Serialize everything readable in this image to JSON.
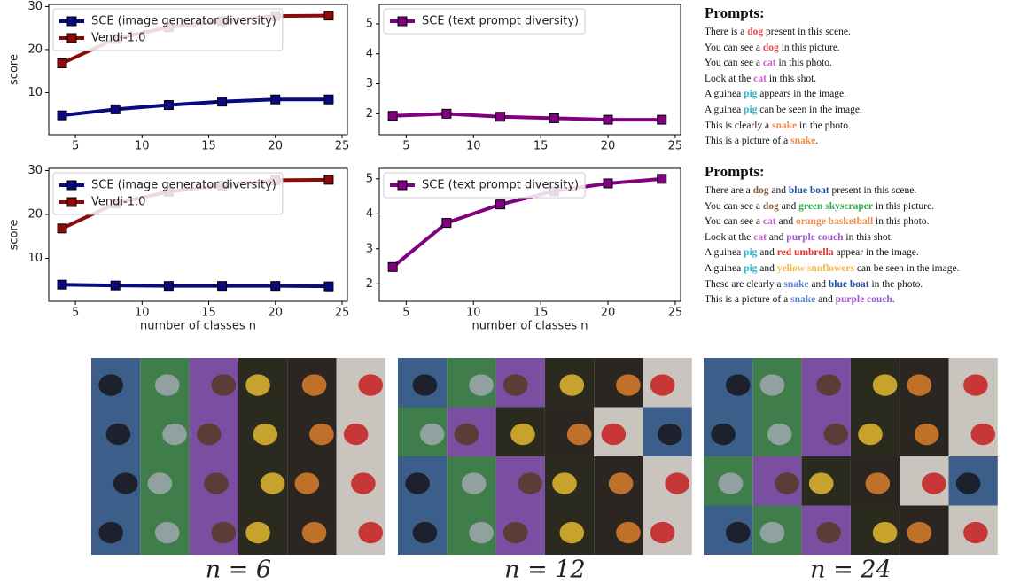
{
  "chart_data": [
    {
      "type": "line",
      "x": [
        4,
        8,
        12,
        16,
        20,
        24
      ],
      "xlim": [
        3,
        25.4
      ],
      "xticks": [
        5,
        10,
        15,
        20,
        25
      ],
      "ylim": [
        0.2,
        30.5
      ],
      "yticks": [
        10,
        20,
        30
      ],
      "ylabel": "score",
      "legend": "upper left",
      "marker": "square",
      "series": [
        {
          "name": "SCE (image generator diversity)",
          "color": "#0a0a80",
          "values": [
            4.7,
            6.1,
            7.1,
            7.9,
            8.4,
            8.4
          ]
        },
        {
          "name": "Vendi-1.0",
          "color": "#8b0a0a",
          "values": [
            16.8,
            22.5,
            25.2,
            26.6,
            27.8,
            27.9
          ]
        }
      ]
    },
    {
      "type": "line",
      "x": [
        4,
        8,
        12,
        16,
        20,
        24
      ],
      "xlim": [
        3,
        25.4
      ],
      "xticks": [
        5,
        10,
        15,
        20,
        25
      ],
      "ylim": [
        1.3,
        5.65
      ],
      "yticks": [
        2,
        3,
        4,
        5
      ],
      "legend": "upper left",
      "marker": "square",
      "series": [
        {
          "name": "SCE (text prompt diversity)",
          "color": "#800080",
          "values": [
            1.93,
            2.0,
            1.9,
            1.85,
            1.8,
            1.8
          ]
        }
      ]
    },
    {
      "type": "line",
      "x": [
        4,
        8,
        12,
        16,
        20,
        24
      ],
      "xlim": [
        3,
        25.4
      ],
      "xticks": [
        5,
        10,
        15,
        20,
        25
      ],
      "ylim": [
        0.2,
        30.5
      ],
      "yticks": [
        10,
        20,
        30
      ],
      "ylabel": "score",
      "xlabel": "number of classes n",
      "legend": "upper left",
      "marker": "square",
      "series": [
        {
          "name": "SCE (image generator diversity)",
          "color": "#0a0a80",
          "values": [
            4.0,
            3.8,
            3.7,
            3.7,
            3.7,
            3.6
          ]
        },
        {
          "name": "Vendi-1.0",
          "color": "#8b0a0a",
          "values": [
            16.8,
            22.5,
            25.2,
            26.6,
            27.8,
            27.9
          ]
        }
      ]
    },
    {
      "type": "line",
      "x": [
        4,
        8,
        12,
        16,
        20,
        24
      ],
      "xlim": [
        3,
        25.4
      ],
      "xticks": [
        5,
        10,
        15,
        20,
        25
      ],
      "ylim": [
        1.5,
        5.3
      ],
      "yticks": [
        2,
        3,
        4,
        5
      ],
      "xlabel": "number of classes n",
      "legend": "upper left",
      "marker": "square",
      "series": [
        {
          "name": "SCE (text prompt diversity)",
          "color": "#800080",
          "values": [
            2.48,
            3.74,
            4.27,
            4.65,
            4.87,
            5.0
          ]
        }
      ]
    }
  ],
  "prompts": [
    {
      "title": "Prompts:",
      "lines": [
        [
          "There is a ",
          {
            "text": "dog",
            "color": "#e5484d"
          },
          " present in this scene."
        ],
        [
          "You can see a ",
          {
            "text": "dog",
            "color": "#e5484d"
          },
          " in this picture."
        ],
        [
          "You can see a ",
          {
            "text": "cat",
            "color": "#cc5fd0"
          },
          " in this photo."
        ],
        [
          "Look at the ",
          {
            "text": "cat",
            "color": "#cc5fd0"
          },
          " in this shot."
        ],
        [
          "A guinea ",
          {
            "text": "pig",
            "color": "#2bb6cc"
          },
          " appears in the image."
        ],
        [
          "A guinea ",
          {
            "text": "pig",
            "color": "#2bb6cc"
          },
          " can be seen in the image."
        ],
        [
          "This is clearly a ",
          {
            "text": "snake",
            "color": "#f08a4b"
          },
          " in the photo."
        ],
        [
          "This is a picture of a ",
          {
            "text": "snake",
            "color": "#f08a4b"
          },
          "."
        ]
      ]
    },
    {
      "title": "Prompts:",
      "lines": [
        [
          "There are a ",
          {
            "text": "dog",
            "color": "#8b5a3c"
          },
          " and ",
          {
            "text": "blue boat",
            "color": "#1f4fa0"
          },
          " present in this scene."
        ],
        [
          "You can see a ",
          {
            "text": "dog",
            "color": "#8b5a3c"
          },
          " and ",
          {
            "text": "green skyscraper",
            "color": "#2fa84f"
          },
          " in this picture."
        ],
        [
          "You can see a ",
          {
            "text": "cat",
            "color": "#cc5fd0"
          },
          " and ",
          {
            "text": "orange basketball",
            "color": "#f08a4b"
          },
          " in this photo."
        ],
        [
          "Look at the ",
          {
            "text": "cat",
            "color": "#cc5fd0"
          },
          " and ",
          {
            "text": "purple couch",
            "color": "#9b59d0"
          },
          " in this shot."
        ],
        [
          "A guinea ",
          {
            "text": "pig",
            "color": "#2bb6cc"
          },
          " and ",
          {
            "text": "red umbrella",
            "color": "#e03030"
          },
          " appear in the image."
        ],
        [
          "A guinea ",
          {
            "text": "pig",
            "color": "#2bb6cc"
          },
          " and ",
          {
            "text": "yellow sunflowers",
            "color": "#f5b84a"
          },
          " can be seen in the image."
        ],
        [
          "These are clearly a ",
          {
            "text": "snake",
            "color": "#5b7fd6"
          },
          " and ",
          {
            "text": "blue boat",
            "color": "#1f4fa0"
          },
          " in the photo."
        ],
        [
          "This is a picture of a ",
          {
            "text": "snake",
            "color": "#5b7fd6"
          },
          " and ",
          {
            "text": "purple couch",
            "color": "#9b59d0"
          },
          "."
        ]
      ]
    }
  ],
  "image_grids": [
    {
      "caption": "n = 6"
    },
    {
      "caption": "n = 12"
    },
    {
      "caption": "n = 24"
    }
  ]
}
